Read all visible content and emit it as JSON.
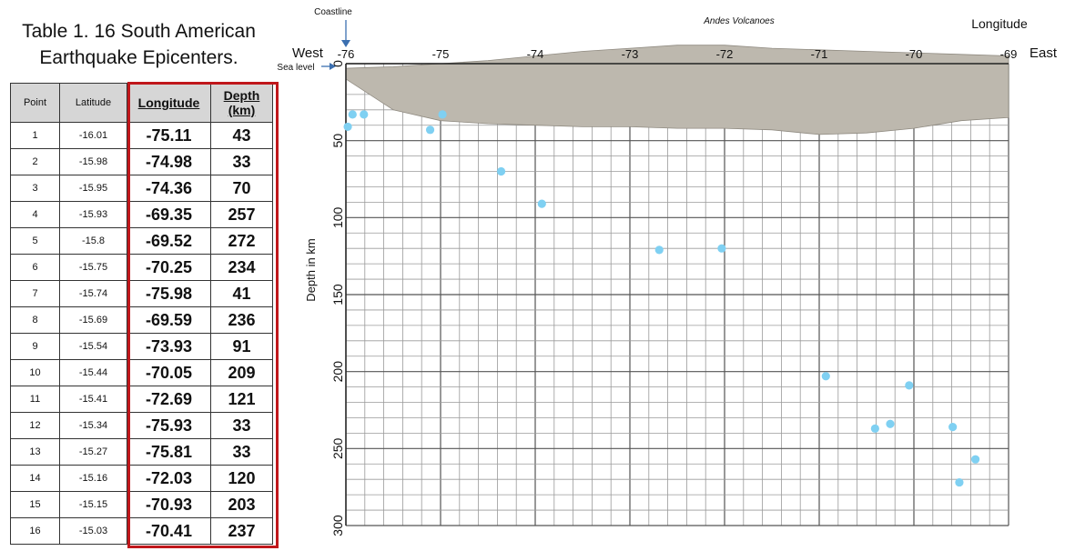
{
  "table": {
    "title_line1": "Table 1. 16 South American",
    "title_line2": "Earthquake Epicenters.",
    "headers": {
      "point": "Point",
      "latitude": "Latitude",
      "longitude": "Longitude",
      "depth_line1": "Depth",
      "depth_line2": "(km)"
    },
    "rows": [
      {
        "point": "1",
        "latitude": "-16.01",
        "longitude": "-75.11",
        "depth": "43"
      },
      {
        "point": "2",
        "latitude": "-15.98",
        "longitude": "-74.98",
        "depth": "33"
      },
      {
        "point": "3",
        "latitude": "-15.95",
        "longitude": "-74.36",
        "depth": "70"
      },
      {
        "point": "4",
        "latitude": "-15.93",
        "longitude": "-69.35",
        "depth": "257"
      },
      {
        "point": "5",
        "latitude": "-15.8",
        "longitude": "-69.52",
        "depth": "272"
      },
      {
        "point": "6",
        "latitude": "-15.75",
        "longitude": "-70.25",
        "depth": "234"
      },
      {
        "point": "7",
        "latitude": "-15.74",
        "longitude": "-75.98",
        "depth": "41"
      },
      {
        "point": "8",
        "latitude": "-15.69",
        "longitude": "-69.59",
        "depth": "236"
      },
      {
        "point": "9",
        "latitude": "-15.54",
        "longitude": "-73.93",
        "depth": "91"
      },
      {
        "point": "10",
        "latitude": "-15.44",
        "longitude": "-70.05",
        "depth": "209"
      },
      {
        "point": "11",
        "latitude": "-15.41",
        "longitude": "-72.69",
        "depth": "121"
      },
      {
        "point": "12",
        "latitude": "-15.34",
        "longitude": "-75.93",
        "depth": "33"
      },
      {
        "point": "13",
        "latitude": "-15.27",
        "longitude": "-75.81",
        "depth": "33"
      },
      {
        "point": "14",
        "latitude": "-15.16",
        "longitude": "-72.03",
        "depth": "120"
      },
      {
        "point": "15",
        "latitude": "-15.15",
        "longitude": "-70.93",
        "depth": "203"
      },
      {
        "point": "16",
        "latitude": "-15.03",
        "longitude": "-70.41",
        "depth": "237"
      }
    ],
    "highlight_color": "#c0171b",
    "header_bg": "#d6d6d6"
  },
  "chart_data": {
    "type": "scatter",
    "labels": {
      "coastline": "Coastline",
      "volcanoes": "Andes Volcanoes",
      "longitude": "Longitude",
      "west": "West",
      "east": "East",
      "sea_level": "Sea level",
      "ylabel": "Depth in km"
    },
    "x_ticks": [
      -76,
      -75,
      -74,
      -73,
      -72,
      -71,
      -70,
      -69
    ],
    "y_ticks": [
      0,
      50,
      100,
      150,
      200,
      250,
      300
    ],
    "xlim": [
      -76,
      -69
    ],
    "ylim": [
      0,
      300
    ],
    "y_inverted": true,
    "grid": true,
    "point_color": "#7fd0f2",
    "terrain_color": "#bdb8ae",
    "series": [
      {
        "x": [
          -75.11,
          -74.98,
          -74.36,
          -69.35,
          -69.52,
          -70.25,
          -75.98,
          -69.59,
          -73.93,
          -70.05,
          -72.69,
          -75.93,
          -75.81,
          -72.03,
          -70.93,
          -70.41
        ],
        "y": [
          43,
          33,
          70,
          257,
          272,
          234,
          41,
          236,
          91,
          209,
          121,
          33,
          33,
          120,
          203,
          237
        ]
      }
    ],
    "terrain_profile": {
      "x": [
        -76.0,
        -75.5,
        -75.0,
        -74.5,
        -74.0,
        -73.5,
        -73.0,
        -72.5,
        -72.0,
        -71.5,
        -71.0,
        -70.5,
        -70.0,
        -69.5,
        -69.0
      ],
      "surface_depth": [
        3,
        2,
        0,
        -2,
        -5,
        -8,
        -10,
        -12,
        -12,
        -10,
        -9,
        -8,
        -7,
        -6,
        -5
      ],
      "base_depth": [
        10,
        30,
        37,
        39,
        40,
        41,
        41,
        42,
        42,
        43,
        46,
        45,
        42,
        37,
        35
      ]
    }
  }
}
